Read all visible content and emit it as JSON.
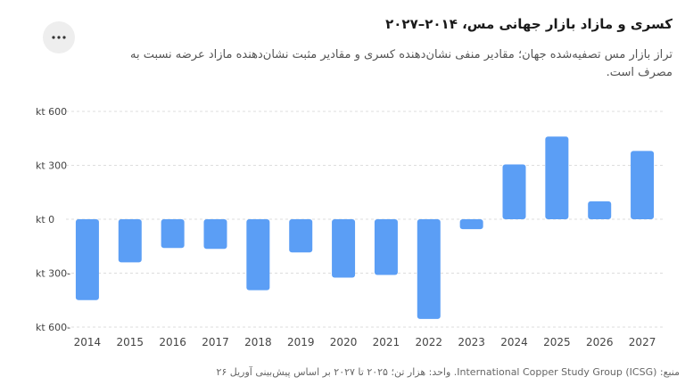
{
  "header": {
    "title": "کسری و مازاد بازار جهانی مس، ۲۰۱۴–۲۰۲۷",
    "subtitle": "تراز بازار مس تصفیه‌شده جهان؛ مقادیر منفی نشان‌دهنده کسری و مقادیر مثبت نشان‌دهنده مازاد عرضه نسبت به مصرف است."
  },
  "menu": {
    "icon": "more-horizontal-icon"
  },
  "footer": {
    "source": "منبع: International Copper Study Group (ICSG). واحد: هزار تن؛ ۲۰۲۵ تا ۲۰۲۷ بر اساس پیش‌بینی آوریل ۲۰۲۶."
  },
  "colors": {
    "bar": "#5b9ef5",
    "grid": "#dddddd",
    "axis_text": "#444444"
  },
  "chart_data": {
    "type": "bar",
    "categories": [
      "2014",
      "2015",
      "2016",
      "2017",
      "2018",
      "2019",
      "2020",
      "2021",
      "2022",
      "2023",
      "2024",
      "2025",
      "2026",
      "2027"
    ],
    "values": [
      -450,
      -240,
      -160,
      -165,
      -395,
      -185,
      -325,
      -310,
      -555,
      -55,
      305,
      460,
      100,
      380
    ],
    "ylim": [
      -600,
      600
    ],
    "yticks": [
      600,
      300,
      0,
      -300,
      -600
    ],
    "ytick_labels": [
      "kt 600",
      "kt 300",
      "kt 0",
      "kt 300-",
      "kt 600-"
    ],
    "grid": true
  }
}
